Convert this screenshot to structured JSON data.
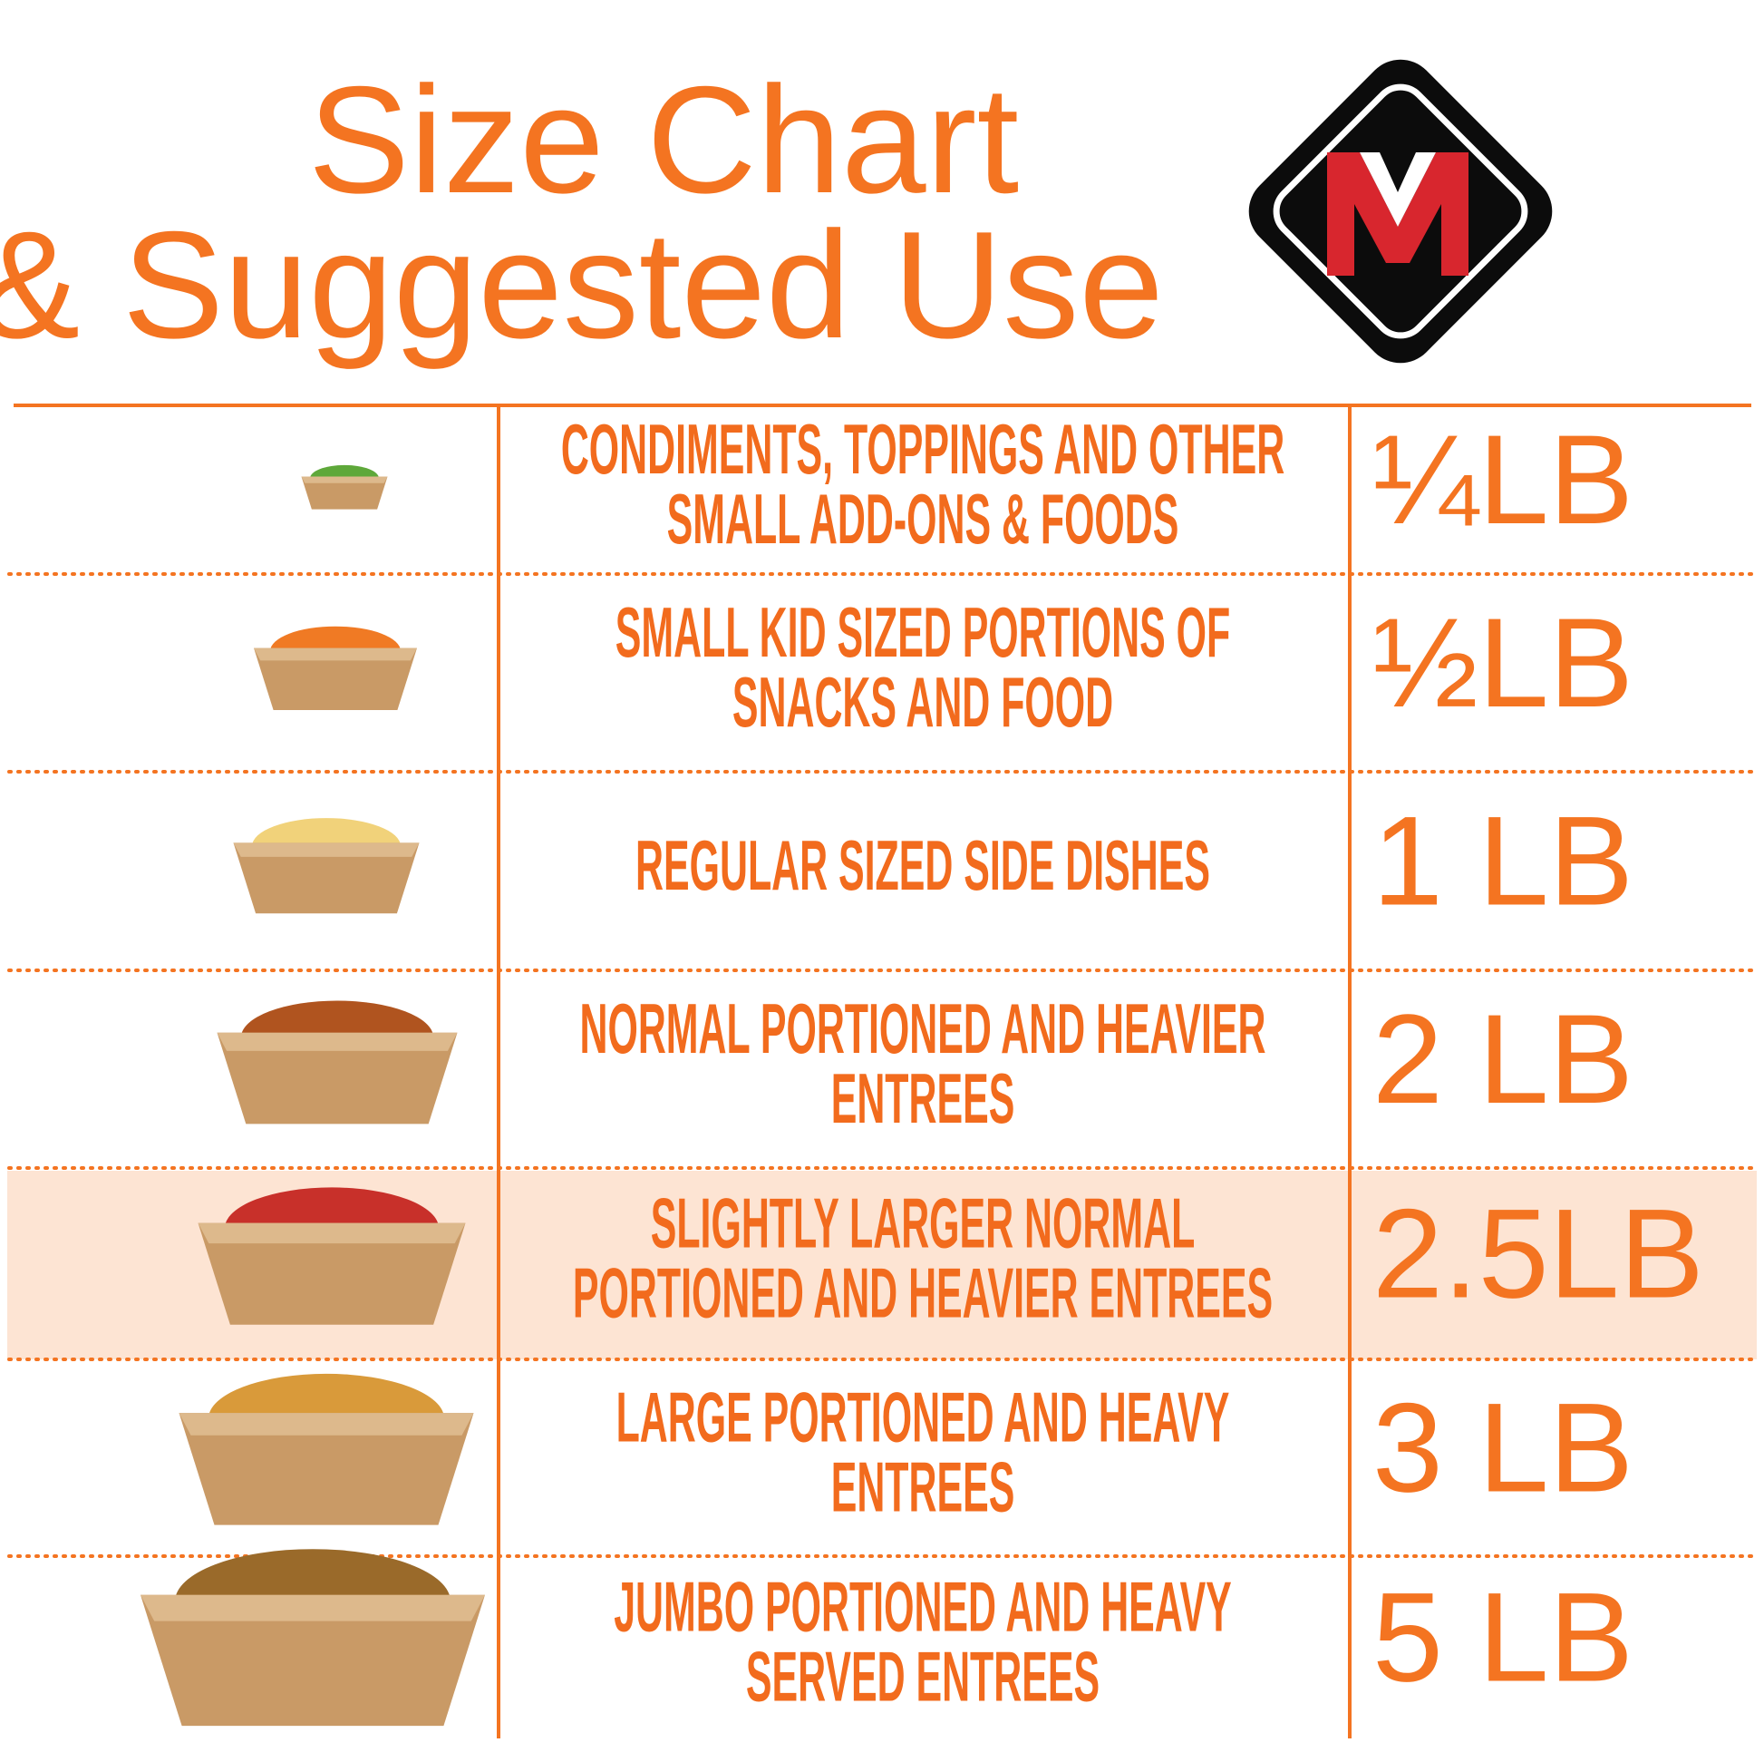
{
  "header": {
    "title_line1": "Size Chart",
    "title_line2": "& Suggested Use"
  },
  "rows": [
    {
      "description": [
        "CONDIMENTS, TOPPINGS AND OTHER",
        "SMALL ADD-ONS & FOODS"
      ],
      "size": "¼LB"
    },
    {
      "description": [
        "SMALL KID SIZED PORTIONS OF",
        "SNACKS AND FOOD"
      ],
      "size": "½LB"
    },
    {
      "description": [
        "REGULAR SIZED SIDE DISHES"
      ],
      "size": "1 LB"
    },
    {
      "description": [
        "NORMAL PORTIONED AND HEAVIER",
        "ENTREES"
      ],
      "size": "2 LB"
    },
    {
      "description": [
        "SLIGHTLY LARGER NORMAL",
        "PORTIONED AND HEAVIER ENTREES"
      ],
      "size": "2.5LB"
    },
    {
      "description": [
        "LARGE PORTIONED AND HEAVY",
        "ENTREES"
      ],
      "size": "3 LB"
    },
    {
      "description": [
        "JUMBO PORTIONED AND HEAVY",
        "SERVED ENTREES"
      ],
      "size": "5 LB"
    }
  ]
}
